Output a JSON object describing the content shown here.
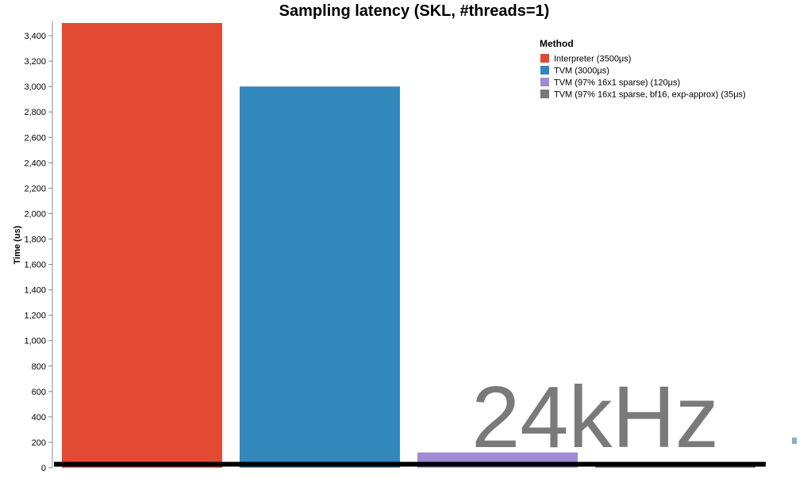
{
  "chart_data": {
    "type": "bar",
    "title": "Sampling latency (SKL, #threads=1)",
    "ylabel": "Time (us)",
    "xlabel": "",
    "ylim": [
      0,
      3500
    ],
    "yticks": [
      0,
      200,
      400,
      600,
      800,
      1000,
      1200,
      1400,
      1600,
      1800,
      2000,
      2200,
      2400,
      2600,
      2800,
      3000,
      3200,
      3400
    ],
    "ytick_labels": [
      "0",
      "200",
      "400",
      "600",
      "800",
      "1,000",
      "1,200",
      "1,400",
      "1,600",
      "1,800",
      "2,000",
      "2,200",
      "2,400",
      "2,600",
      "2,800",
      "3,000",
      "3,200",
      "3,400"
    ],
    "grid": false,
    "legend": {
      "title": "Method",
      "placement": "top-right",
      "entries": [
        {
          "label": "Interpreter (3500μs)",
          "color": "#e34a33"
        },
        {
          "label": "TVM (3000μs)",
          "color": "#3288bd"
        },
        {
          "label": "TVM (97% 16x1 sparse) (120μs)",
          "color": "#a08bd4"
        },
        {
          "label": "TVM (97% 16x1 sparse, bf16, exp-approx) (35μs)",
          "color": "#777777"
        }
      ]
    },
    "bars": [
      {
        "method": "Interpreter (3500μs)",
        "value": 3500,
        "color": "#e34a33"
      },
      {
        "method": "TVM (3000μs)",
        "value": 3000,
        "color": "#3288bd"
      },
      {
        "method": "TVM (97% 16x1 sparse) (120μs)",
        "value": 120,
        "color": "#a08bd4"
      },
      {
        "method": "TVM (97% 16x1 sparse, bf16, exp-approx) (35μs)",
        "value": 35,
        "color": "#777777"
      }
    ],
    "annotations": [
      {
        "text": "24kHz",
        "color": "#7a7a7a"
      }
    ],
    "reference_line": {
      "value": 40,
      "color": "#000000"
    }
  }
}
